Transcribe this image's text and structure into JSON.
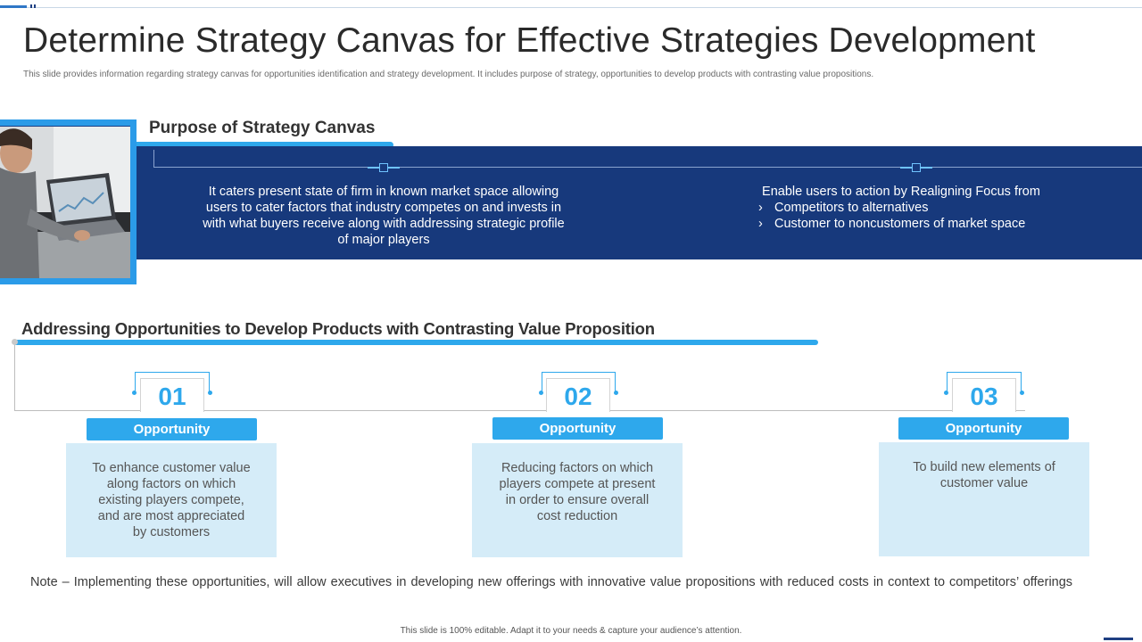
{
  "slide": {
    "title": "Determine Strategy Canvas for Effective Strategies Development",
    "subtitle": "This slide provides information regarding strategy canvas for opportunities identification and strategy development. It includes purpose of strategy, opportunities to develop products with contrasting value propositions."
  },
  "purpose": {
    "heading": "Purpose of Strategy Canvas",
    "left_text": "It caters present state of firm in known market space allowing users to cater factors that industry competes on and invests in with what buyers receive along with addressing strategic profile of major players",
    "right_lead": "Enable users to action by Realigning Focus from",
    "right_items": [
      {
        "bullet": "›",
        "text": "Competitors to alternatives"
      },
      {
        "bullet": "›",
        "text": "Customer to noncustomers of market space"
      }
    ]
  },
  "opportunities": {
    "heading": "Addressing Opportunities to Develop Products with Contrasting Value Proposition",
    "items": [
      {
        "number": "01",
        "label": "Opportunity",
        "text": "To enhance customer value along factors on which existing players compete, and are most appreciated by customers"
      },
      {
        "number": "02",
        "label": "Opportunity",
        "text": "Reducing factors on which players compete at present in order to ensure overall cost reduction"
      },
      {
        "number": "03",
        "label": "Opportunity",
        "text": "To build new elements of customer value"
      }
    ]
  },
  "note": "Note – Implementing these opportunities, will allow executives in developing new offerings with innovative value propositions with reduced costs in context to competitors’ offerings",
  "footer": "This slide is 100% editable. Adapt it to your needs & capture your audience’s attention.",
  "colors": {
    "navy": "#17397c",
    "accent_blue": "#2ea8ec",
    "light_box": "#d5ecf8"
  },
  "icons": {
    "photo": "person-at-laptop-photo",
    "bullet": "chevron-right-icon"
  }
}
